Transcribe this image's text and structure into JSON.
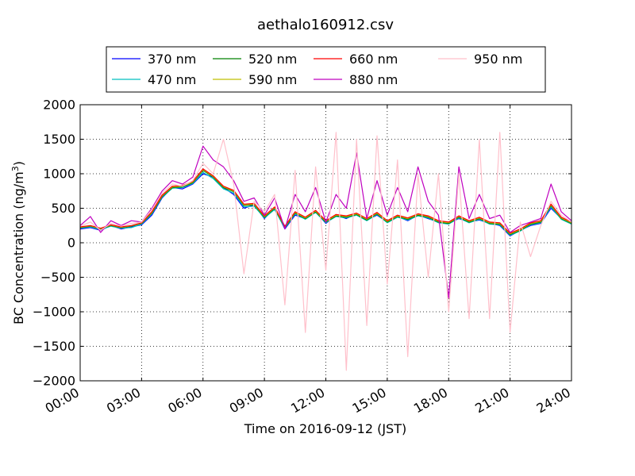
{
  "chart_data": {
    "type": "line",
    "title": "aethalo160912.csv",
    "xlabel": "Time on 2016-09-12 (JST)",
    "ylabel": "BC Concentration (ng/m³)",
    "ylabel_parts": {
      "main": "BC Concentration (ng/m",
      "sup": "3",
      "tail": ")"
    },
    "xlim": [
      0,
      24
    ],
    "ylim": [
      -2000,
      2000
    ],
    "x_ticks": [
      0,
      3,
      6,
      9,
      12,
      15,
      18,
      21,
      24
    ],
    "x_tick_labels": [
      "00:00",
      "03:00",
      "06:00",
      "09:00",
      "12:00",
      "15:00",
      "18:00",
      "21:00",
      "24:00"
    ],
    "y_ticks": [
      -2000,
      -1500,
      -1000,
      -500,
      0,
      500,
      1000,
      1500,
      2000
    ],
    "y_tick_labels": [
      "−2000",
      "−1500",
      "−1000",
      "−500",
      "0",
      "500",
      "1000",
      "1500",
      "2000"
    ],
    "grid": true,
    "legend_position": "top-center",
    "series": [
      {
        "name": "370 nm",
        "color": "#0000ff",
        "x": [
          0.0,
          0.5,
          1.0,
          1.5,
          2.0,
          2.5,
          3.0,
          3.5,
          4.0,
          4.5,
          5.0,
          5.5,
          6.0,
          6.5,
          7.0,
          7.5,
          8.0,
          8.5,
          9.0,
          9.5,
          10.0,
          10.5,
          11.0,
          11.5,
          12.0,
          12.5,
          13.0,
          13.5,
          14.0,
          14.5,
          15.0,
          15.5,
          16.0,
          16.5,
          17.0,
          17.5,
          18.0,
          18.5,
          19.0,
          19.5,
          20.0,
          20.5,
          21.0,
          21.5,
          22.0,
          22.5,
          23.0,
          23.5,
          24.0
        ],
        "y": [
          200,
          220,
          180,
          250,
          200,
          230,
          260,
          400,
          650,
          800,
          780,
          850,
          1000,
          950,
          800,
          700,
          500,
          550,
          350,
          500,
          200,
          400,
          350,
          450,
          280,
          400,
          350,
          420,
          330,
          400,
          300,
          380,
          320,
          400,
          350,
          300,
          280,
          350,
          300,
          330,
          280,
          250,
          100,
          180,
          250,
          280,
          500,
          350,
          280
        ]
      },
      {
        "name": "470 nm",
        "color": "#00bfbf",
        "x": [
          0.0,
          0.5,
          1.0,
          1.5,
          2.0,
          2.5,
          3.0,
          3.5,
          4.0,
          4.5,
          5.0,
          5.5,
          6.0,
          6.5,
          7.0,
          7.5,
          8.0,
          8.5,
          9.0,
          9.5,
          10.0,
          10.5,
          11.0,
          11.5,
          12.0,
          12.5,
          13.0,
          13.5,
          14.0,
          14.5,
          15.0,
          15.5,
          16.0,
          16.5,
          17.0,
          17.5,
          18.0,
          18.5,
          19.0,
          19.5,
          20.0,
          20.5,
          21.0,
          21.5,
          22.0,
          22.5,
          23.0,
          23.5,
          24.0
        ],
        "y": [
          210,
          230,
          190,
          240,
          210,
          220,
          270,
          420,
          660,
          790,
          800,
          860,
          1020,
          930,
          780,
          720,
          520,
          530,
          360,
          480,
          210,
          420,
          340,
          440,
          290,
          380,
          360,
          400,
          320,
          410,
          290,
          370,
          330,
          390,
          360,
          290,
          270,
          360,
          290,
          340,
          270,
          260,
          110,
          170,
          260,
          290,
          520,
          340,
          270
        ]
      },
      {
        "name": "520 nm",
        "color": "#008000",
        "x": [
          0.0,
          0.5,
          1.0,
          1.5,
          2.0,
          2.5,
          3.0,
          3.5,
          4.0,
          4.5,
          5.0,
          5.5,
          6.0,
          6.5,
          7.0,
          7.5,
          8.0,
          8.5,
          9.0,
          9.5,
          10.0,
          10.5,
          11.0,
          11.5,
          12.0,
          12.5,
          13.0,
          13.5,
          14.0,
          14.5,
          15.0,
          15.5,
          16.0,
          16.5,
          17.0,
          17.5,
          18.0,
          18.5,
          19.0,
          19.5,
          20.0,
          20.5,
          21.0,
          21.5,
          22.0,
          22.5,
          23.0,
          23.5,
          24.0
        ],
        "y": [
          220,
          240,
          200,
          250,
          220,
          240,
          280,
          430,
          670,
          800,
          810,
          870,
          1050,
          950,
          800,
          740,
          540,
          550,
          370,
          500,
          220,
          430,
          350,
          450,
          300,
          390,
          370,
          410,
          330,
          420,
          300,
          380,
          340,
          400,
          370,
          300,
          280,
          370,
          300,
          350,
          280,
          270,
          120,
          180,
          270,
          300,
          540,
          350,
          280
        ]
      },
      {
        "name": "590 nm",
        "color": "#bfbf00",
        "x": [
          0.0,
          0.5,
          1.0,
          1.5,
          2.0,
          2.5,
          3.0,
          3.5,
          4.0,
          4.5,
          5.0,
          5.5,
          6.0,
          6.5,
          7.0,
          7.5,
          8.0,
          8.5,
          9.0,
          9.5,
          10.0,
          10.5,
          11.0,
          11.5,
          12.0,
          12.5,
          13.0,
          13.5,
          14.0,
          14.5,
          15.0,
          15.5,
          16.0,
          16.5,
          17.0,
          17.5,
          18.0,
          18.5,
          19.0,
          19.5,
          20.0,
          20.5,
          21.0,
          21.5,
          22.0,
          22.5,
          23.0,
          23.5,
          24.0
        ],
        "y": [
          225,
          245,
          205,
          255,
          225,
          245,
          285,
          440,
          680,
          810,
          820,
          880,
          1060,
          960,
          810,
          750,
          550,
          560,
          380,
          510,
          230,
          440,
          360,
          460,
          310,
          400,
          380,
          420,
          340,
          430,
          310,
          390,
          350,
          410,
          380,
          310,
          290,
          380,
          310,
          360,
          290,
          280,
          130,
          190,
          280,
          310,
          550,
          360,
          290
        ]
      },
      {
        "name": "660 nm",
        "color": "#ff0000",
        "x": [
          0.0,
          0.5,
          1.0,
          1.5,
          2.0,
          2.5,
          3.0,
          3.5,
          4.0,
          4.5,
          5.0,
          5.5,
          6.0,
          6.5,
          7.0,
          7.5,
          8.0,
          8.5,
          9.0,
          9.5,
          10.0,
          10.5,
          11.0,
          11.5,
          12.0,
          12.5,
          13.0,
          13.5,
          14.0,
          14.5,
          15.0,
          15.5,
          16.0,
          16.5,
          17.0,
          17.5,
          18.0,
          18.5,
          19.0,
          19.5,
          20.0,
          20.5,
          21.0,
          21.5,
          22.0,
          22.5,
          23.0,
          23.5,
          24.0
        ],
        "y": [
          230,
          250,
          210,
          260,
          230,
          250,
          290,
          450,
          690,
          820,
          830,
          890,
          1070,
          970,
          820,
          760,
          560,
          570,
          390,
          520,
          240,
          450,
          370,
          470,
          320,
          410,
          390,
          430,
          350,
          440,
          320,
          400,
          360,
          420,
          390,
          320,
          300,
          390,
          320,
          370,
          300,
          290,
          140,
          200,
          290,
          320,
          560,
          370,
          300
        ]
      },
      {
        "name": "880 nm",
        "color": "#bf00bf",
        "x": [
          0.0,
          0.5,
          1.0,
          1.5,
          2.0,
          2.5,
          3.0,
          3.5,
          4.0,
          4.5,
          5.0,
          5.5,
          6.0,
          6.5,
          7.0,
          7.5,
          8.0,
          8.5,
          9.0,
          9.5,
          10.0,
          10.5,
          11.0,
          11.5,
          12.0,
          12.5,
          13.0,
          13.5,
          14.0,
          14.5,
          15.0,
          15.5,
          16.0,
          16.5,
          17.0,
          17.5,
          18.0,
          18.5,
          19.0,
          19.5,
          20.0,
          20.5,
          21.0,
          21.5,
          22.0,
          22.5,
          23.0,
          23.5,
          24.0
        ],
        "y": [
          250,
          380,
          150,
          320,
          250,
          320,
          300,
          500,
          750,
          900,
          850,
          950,
          1400,
          1200,
          1100,
          900,
          600,
          650,
          400,
          650,
          200,
          700,
          450,
          800,
          300,
          700,
          500,
          1300,
          350,
          900,
          400,
          800,
          450,
          1100,
          600,
          400,
          -800,
          1100,
          350,
          700,
          350,
          400,
          150,
          250,
          300,
          350,
          850,
          450,
          320
        ]
      },
      {
        "name": "950 nm",
        "color": "#ffc0cb",
        "x": [
          0.0,
          0.5,
          1.0,
          1.5,
          2.0,
          2.5,
          3.0,
          3.5,
          4.0,
          4.5,
          5.0,
          5.5,
          6.0,
          6.5,
          7.0,
          7.5,
          8.0,
          8.5,
          9.0,
          9.5,
          10.0,
          10.5,
          11.0,
          11.5,
          12.0,
          12.5,
          13.0,
          13.5,
          14.0,
          14.5,
          15.0,
          15.5,
          16.0,
          16.5,
          17.0,
          17.5,
          18.0,
          18.5,
          19.0,
          19.5,
          20.0,
          20.5,
          21.0,
          21.5,
          22.0,
          22.5,
          23.0,
          23.5,
          24.0
        ],
        "y": [
          240,
          300,
          180,
          280,
          240,
          280,
          300,
          480,
          720,
          850,
          820,
          900,
          1150,
          1000,
          1500,
          850,
          -450,
          600,
          450,
          700,
          -900,
          1050,
          -1300,
          1100,
          -400,
          1600,
          -1850,
          1500,
          -1200,
          1550,
          -600,
          1200,
          -1650,
          1000,
          -500,
          1000,
          -1000,
          1000,
          -1100,
          1500,
          -1100,
          1600,
          -1300,
          300,
          -200,
          250,
          600,
          400,
          300
        ]
      }
    ]
  }
}
